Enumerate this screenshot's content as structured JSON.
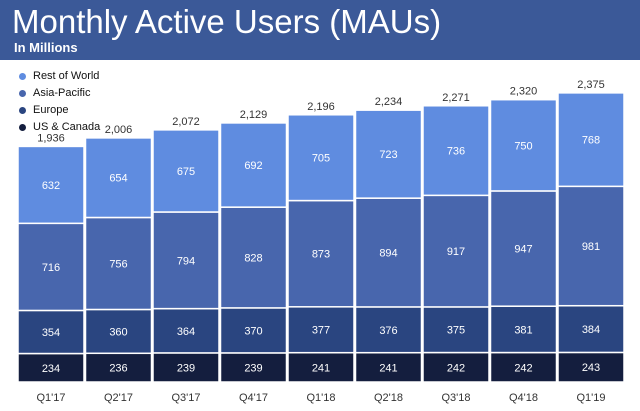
{
  "header": {
    "title": "Monthly Active Users (MAUs)",
    "subtitle": "In Millions"
  },
  "colors": {
    "header_bg": "#3b5998",
    "bar_outline": "#ffffff"
  },
  "chart_data": {
    "type": "bar",
    "stacked": true,
    "title": "Monthly Active Users (MAUs)",
    "subtitle": "In Millions",
    "categories": [
      "Q1'17",
      "Q2'17",
      "Q3'17",
      "Q4'17",
      "Q1'18",
      "Q2'18",
      "Q3'18",
      "Q4'18",
      "Q1'19"
    ],
    "totals": [
      1936,
      2006,
      2072,
      2129,
      2196,
      2234,
      2271,
      2320,
      2375
    ],
    "series": [
      {
        "name": "US & Canada",
        "color": "#141e3e",
        "label_color": "#ffffff",
        "values": [
          234,
          236,
          239,
          239,
          241,
          241,
          242,
          242,
          243
        ]
      },
      {
        "name": "Europe",
        "color": "#2a4580",
        "label_color": "#ffffff",
        "values": [
          354,
          360,
          364,
          370,
          377,
          376,
          375,
          381,
          384
        ]
      },
      {
        "name": "Asia-Pacific",
        "color": "#4866ad",
        "label_color": "#ffffff",
        "values": [
          716,
          756,
          794,
          828,
          873,
          894,
          917,
          947,
          981
        ]
      },
      {
        "name": "Rest of World",
        "color": "#5f8ce0",
        "label_color": "#ffffff",
        "values": [
          632,
          654,
          675,
          692,
          705,
          723,
          736,
          750,
          768
        ]
      }
    ],
    "legend_order": [
      "Rest of World",
      "Asia-Pacific",
      "Europe",
      "US & Canada"
    ],
    "legend_position": "top-left",
    "ylim": [
      0,
      2375
    ],
    "grid": false,
    "xlabel": "",
    "ylabel": ""
  }
}
